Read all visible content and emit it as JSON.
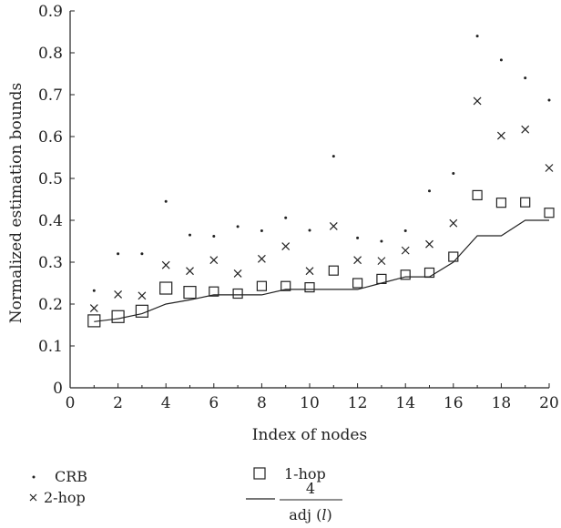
{
  "chart_data": {
    "type": "scatter",
    "title": "",
    "xlabel": "Index of nodes",
    "ylabel": "Normalized estimation bounds",
    "xlim": [
      0,
      20
    ],
    "ylim": [
      0,
      0.9
    ],
    "xticks": [
      "0",
      "2",
      "4",
      "6",
      "8",
      "10",
      "12",
      "14",
      "16",
      "18",
      "20"
    ],
    "yticks": [
      "0",
      "0.1",
      "0.2",
      "0.3",
      "0.4",
      "0.5",
      "0.6",
      "0.7",
      "0.8",
      "0.9"
    ],
    "grid": false,
    "legend_position": "bottom",
    "series": [
      {
        "name": "CRB",
        "marker": "dot",
        "x": [
          1,
          2,
          3,
          4,
          5,
          6,
          7,
          8,
          9,
          10,
          11,
          12,
          13,
          14,
          15,
          16,
          17,
          18,
          19,
          20
        ],
        "y": [
          0.232,
          0.32,
          0.32,
          0.445,
          0.365,
          0.362,
          0.385,
          0.375,
          0.406,
          0.376,
          0.553,
          0.358,
          0.35,
          0.375,
          0.47,
          0.512,
          0.84,
          0.783,
          0.74,
          0.687
        ]
      },
      {
        "name": "2-hop",
        "marker": "x",
        "x": [
          1,
          2,
          3,
          4,
          5,
          6,
          7,
          8,
          9,
          10,
          11,
          12,
          13,
          14,
          15,
          16,
          17,
          18,
          19,
          20
        ],
        "y": [
          0.19,
          0.223,
          0.22,
          0.293,
          0.279,
          0.305,
          0.273,
          0.308,
          0.338,
          0.279,
          0.386,
          0.305,
          0.303,
          0.328,
          0.343,
          0.393,
          0.685,
          0.602,
          0.617,
          0.525
        ]
      },
      {
        "name": "1-hop",
        "marker": "square",
        "x": [
          1,
          2,
          3,
          4,
          5,
          6,
          7,
          8,
          9,
          10,
          11,
          12,
          13,
          14,
          15,
          16,
          17,
          18,
          19,
          20
        ],
        "y": [
          0.16,
          0.17,
          0.183,
          0.238,
          0.228,
          0.23,
          0.225,
          0.243,
          0.243,
          0.24,
          0.28,
          0.25,
          0.26,
          0.27,
          0.275,
          0.313,
          0.46,
          0.442,
          0.443,
          0.418
        ]
      },
      {
        "name_numerator": "4",
        "name_denominator": "adj (",
        "name_denominator_var": "l",
        "name_denominator_close": ")",
        "marker": "step-line",
        "x": [
          1,
          2,
          3,
          4,
          5,
          6,
          7,
          8,
          9,
          10,
          11,
          12,
          13,
          14,
          15,
          16,
          17,
          18,
          19,
          20
        ],
        "y": [
          0.158,
          0.165,
          0.177,
          0.2,
          0.21,
          0.222,
          0.222,
          0.222,
          0.235,
          0.235,
          0.235,
          0.235,
          0.25,
          0.265,
          0.265,
          0.3,
          0.363,
          0.363,
          0.4,
          0.4
        ]
      }
    ],
    "colors": {
      "marks": "#222222",
      "axis": "#222222"
    }
  }
}
